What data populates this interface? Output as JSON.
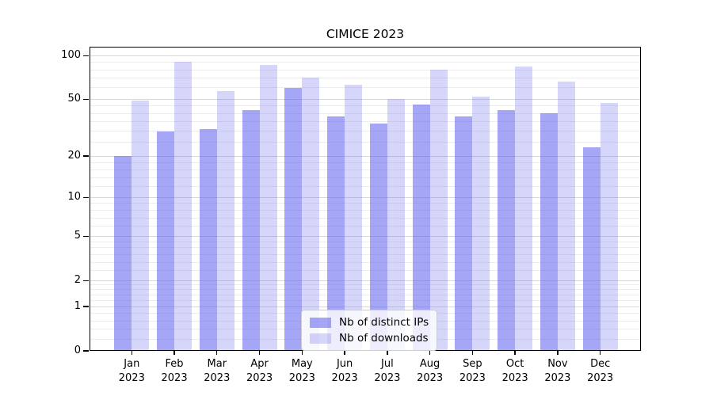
{
  "title": "CIMICE 2023",
  "chart_data": {
    "type": "bar",
    "title": "CIMICE 2023",
    "categories": [
      "Jan",
      "Feb",
      "Mar",
      "Apr",
      "May",
      "Jun",
      "Jul",
      "Aug",
      "Sep",
      "Oct",
      "Nov",
      "Dec"
    ],
    "year": "2023",
    "series": [
      {
        "name": "Nb of distinct IPs",
        "color": "rgba(92,92,239,0.55)",
        "values": [
          20,
          30,
          31,
          42,
          60,
          38,
          34,
          46,
          38,
          42,
          40,
          23
        ]
      },
      {
        "name": "Nb of downloads",
        "color": "rgba(92,92,239,0.25)",
        "values": [
          49,
          91,
          57,
          86,
          71,
          63,
          50,
          80,
          52,
          84,
          66,
          47
        ]
      }
    ],
    "yscale": "log1p",
    "ylim": [
      0,
      115
    ],
    "yticks": [
      0,
      1,
      2,
      5,
      10,
      20,
      50,
      100
    ],
    "minor_yticks": [
      0.2,
      0.4,
      0.6,
      0.8,
      1.2,
      1.4,
      1.6,
      1.8,
      2.5,
      3,
      3.5,
      4,
      4.5,
      6,
      7,
      8,
      9,
      12,
      14,
      16,
      18,
      25,
      30,
      35,
      40,
      45,
      60,
      70,
      80,
      90
    ],
    "grid": true,
    "legend_position": "lower center",
    "colors": {
      "grid_major": "#d8d8d8",
      "grid_minor": "#ececec",
      "axis": "#000000"
    }
  }
}
